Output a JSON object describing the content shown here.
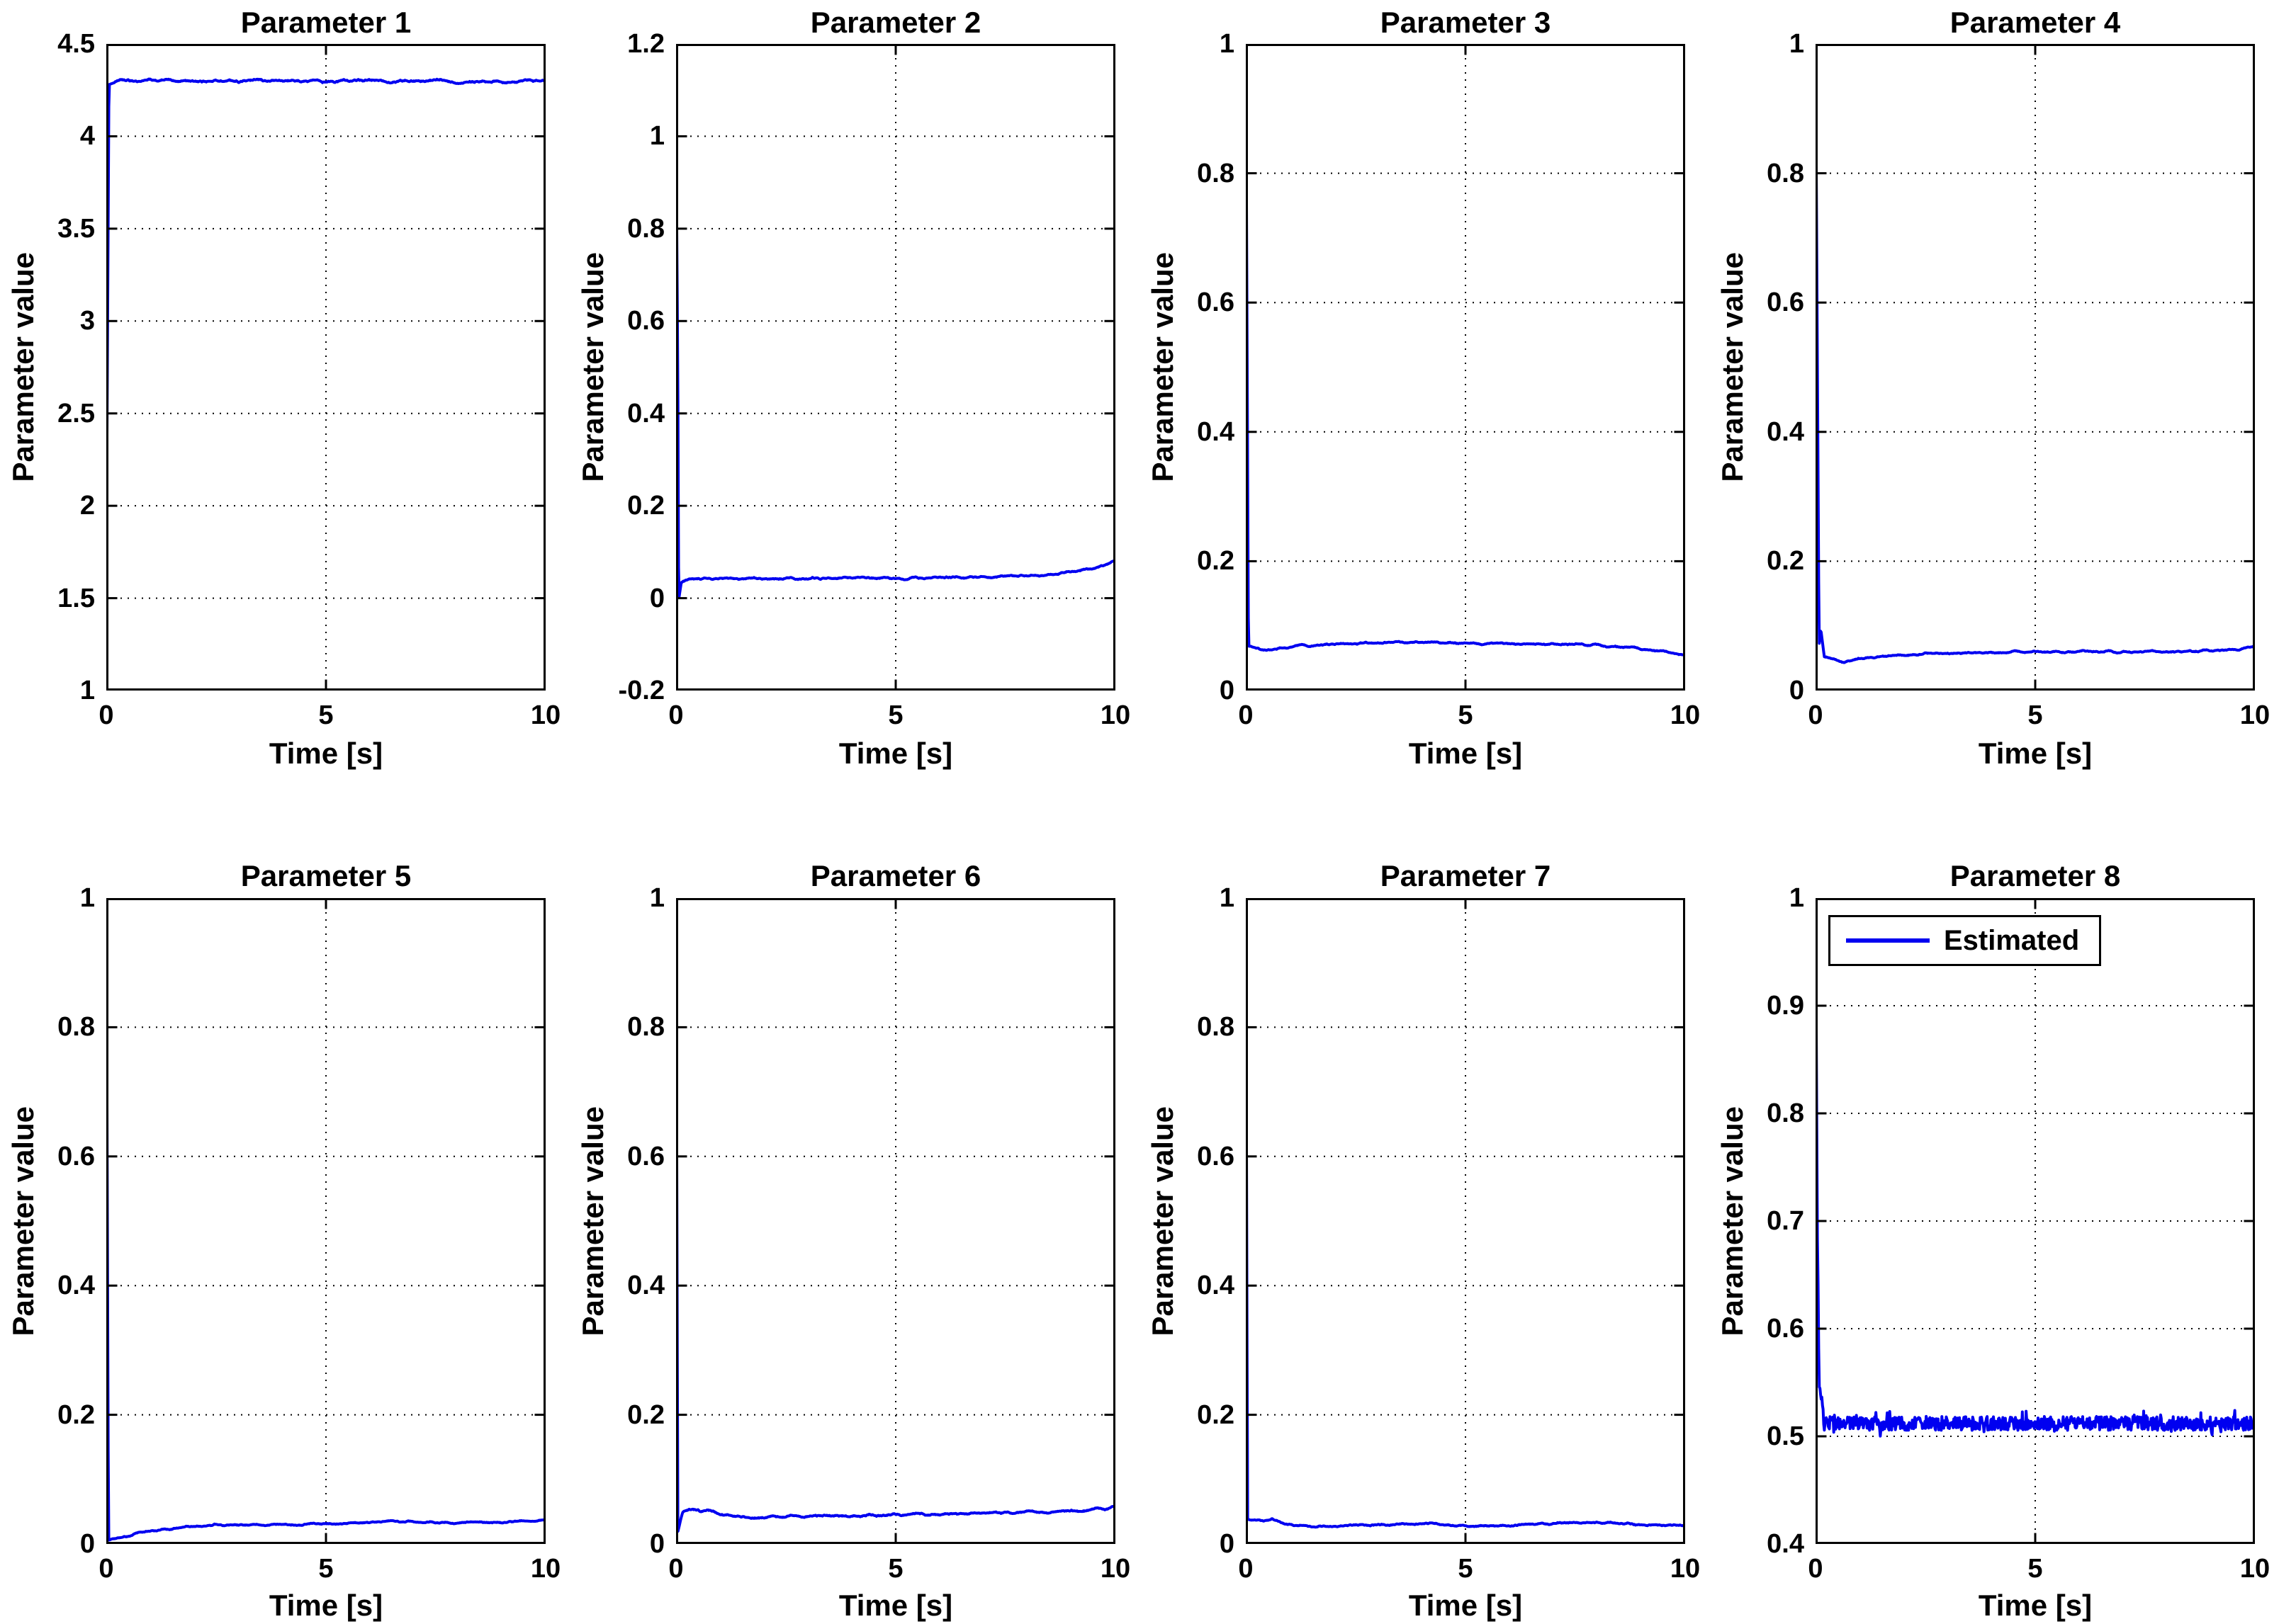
{
  "figure": {
    "background": "#ffffff",
    "frame_color": "#000000",
    "grid_color": "#000000",
    "text_color": "#000000"
  },
  "chart_data": {
    "type": "line",
    "layout": {
      "rows": 2,
      "cols": 4,
      "grid": true
    },
    "series_name": "Estimated",
    "line_color": "#0000F0",
    "legend": {
      "label": "Estimated",
      "position": "top-left-inside",
      "shown_on_plot": "Parameter 8"
    },
    "plots": [
      {
        "title": "Parameter 1",
        "xlabel": "Time [s]",
        "ylabel": "Parameter value",
        "xlim": [
          0,
          10
        ],
        "xticks": [
          "0",
          "5",
          "10"
        ],
        "ylim": [
          1,
          4.5
        ],
        "yticks": [
          "1",
          "1.5",
          "2",
          "2.5",
          "3",
          "3.5",
          "4",
          "4.5"
        ],
        "description": "jumps from ~1.7 at t=0 to steady ~4.3",
        "anchors": [
          [
            0,
            1.7
          ],
          [
            0.06,
            4.28
          ],
          [
            0.3,
            4.3
          ],
          [
            10,
            4.3
          ]
        ],
        "noise": 0.015,
        "smooth": 15,
        "spiky": false,
        "legend": false
      },
      {
        "title": "Parameter 2",
        "xlabel": "Time [s]",
        "ylabel": "Parameter value",
        "xlim": [
          0,
          10
        ],
        "xticks": [
          "0",
          "5",
          "10"
        ],
        "ylim": [
          -0.2,
          1.2
        ],
        "yticks": [
          "-0.2",
          "0",
          "0.2",
          "0.4",
          "0.6",
          "0.8",
          "1",
          "1.2"
        ],
        "description": "starts at 1, drops to ~0, settles ~0.04, rises to ~0.08 by t=10",
        "anchors": [
          [
            0,
            1.0
          ],
          [
            0.04,
            0.5
          ],
          [
            0.06,
            -0.005
          ],
          [
            0.12,
            0.035
          ],
          [
            0.3,
            0.042
          ],
          [
            5,
            0.043
          ],
          [
            7,
            0.046
          ],
          [
            8.5,
            0.05
          ],
          [
            9.4,
            0.062
          ],
          [
            10,
            0.08
          ]
        ],
        "noise": 0.0035,
        "smooth": 13,
        "spiky": false,
        "legend": false
      },
      {
        "title": "Parameter 3",
        "xlabel": "Time [s]",
        "ylabel": "Parameter value",
        "xlim": [
          0,
          10
        ],
        "xticks": [
          "0",
          "5",
          "10"
        ],
        "ylim": [
          0,
          1
        ],
        "yticks": [
          "0",
          "0.2",
          "0.4",
          "0.6",
          "0.8",
          "1"
        ],
        "description": "starts at 1, drops to ~0.065, gentle hump to ~0.075 near t=4, declines to ~0.055",
        "anchors": [
          [
            0,
            1.0
          ],
          [
            0.06,
            0.068
          ],
          [
            0.4,
            0.062
          ],
          [
            1,
            0.068
          ],
          [
            2.5,
            0.073
          ],
          [
            4,
            0.075
          ],
          [
            5.5,
            0.073
          ],
          [
            7,
            0.072
          ],
          [
            8,
            0.07
          ],
          [
            9,
            0.065
          ],
          [
            10,
            0.055
          ]
        ],
        "noise": 0.0025,
        "smooth": 13,
        "spiky": false,
        "legend": false
      },
      {
        "title": "Parameter 4",
        "xlabel": "Time [s]",
        "ylabel": "Parameter value",
        "xlim": [
          0,
          10
        ],
        "xticks": [
          "0",
          "5",
          "10"
        ],
        "ylim": [
          0,
          1
        ],
        "yticks": [
          "0",
          "0.2",
          "0.4",
          "0.6",
          "0.8",
          "1"
        ],
        "description": "starts at 1, brief bump ~0.09, dip ~0.045, settles ~0.06, rises to ~0.07",
        "anchors": [
          [
            0,
            1.0
          ],
          [
            0.08,
            0.07
          ],
          [
            0.12,
            0.095
          ],
          [
            0.2,
            0.05
          ],
          [
            0.45,
            0.048
          ],
          [
            0.65,
            0.043
          ],
          [
            1,
            0.05
          ],
          [
            2,
            0.055
          ],
          [
            3,
            0.058
          ],
          [
            5,
            0.06
          ],
          [
            8,
            0.06
          ],
          [
            9.3,
            0.062
          ],
          [
            9.8,
            0.066
          ],
          [
            10,
            0.07
          ]
        ],
        "noise": 0.0025,
        "smooth": 13,
        "spiky": false,
        "legend": false
      },
      {
        "title": "Parameter 5",
        "xlabel": "Time [s]",
        "ylabel": "Parameter value",
        "xlim": [
          0,
          10
        ],
        "xticks": [
          "0",
          "5",
          "10"
        ],
        "ylim": [
          0,
          1
        ],
        "yticks": [
          "0",
          "0.2",
          "0.4",
          "0.6",
          "0.8",
          "1"
        ],
        "description": "starts at 1, drops to ~0.01, slow rise to ~0.037",
        "anchors": [
          [
            0,
            1.0
          ],
          [
            0.05,
            0.008
          ],
          [
            0.5,
            0.012
          ],
          [
            0.9,
            0.02
          ],
          [
            1.5,
            0.024
          ],
          [
            2.5,
            0.03
          ],
          [
            4,
            0.03
          ],
          [
            5.5,
            0.032
          ],
          [
            6.5,
            0.035
          ],
          [
            8,
            0.033
          ],
          [
            9,
            0.033
          ],
          [
            10,
            0.037
          ]
        ],
        "noise": 0.002,
        "smooth": 13,
        "spiky": false,
        "legend": false
      },
      {
        "title": "Parameter 6",
        "xlabel": "Time [s]",
        "ylabel": "Parameter value",
        "xlim": [
          0,
          10
        ],
        "xticks": [
          "0",
          "5",
          "10"
        ],
        "ylim": [
          0,
          1
        ],
        "yticks": [
          "0",
          "0.2",
          "0.4",
          "0.6",
          "0.8",
          "1"
        ],
        "description": "starts at 1, drops to ~0.02, bump ~0.055, dip ~0.04, slow rise to ~0.057",
        "anchors": [
          [
            0,
            1.0
          ],
          [
            0.04,
            0.02
          ],
          [
            0.15,
            0.05
          ],
          [
            0.35,
            0.055
          ],
          [
            0.55,
            0.05
          ],
          [
            0.7,
            0.053
          ],
          [
            1,
            0.046
          ],
          [
            1.6,
            0.04
          ],
          [
            2.5,
            0.042
          ],
          [
            4,
            0.044
          ],
          [
            5,
            0.045
          ],
          [
            7,
            0.048
          ],
          [
            8.5,
            0.05
          ],
          [
            9.5,
            0.053
          ],
          [
            10,
            0.057
          ]
        ],
        "noise": 0.0025,
        "smooth": 11,
        "spiky": false,
        "legend": false
      },
      {
        "title": "Parameter 7",
        "xlabel": "Time [s]",
        "ylabel": "Parameter value",
        "xlim": [
          0,
          10
        ],
        "xticks": [
          "0",
          "5",
          "10"
        ],
        "ylim": [
          0,
          1
        ],
        "yticks": [
          "0",
          "0.2",
          "0.4",
          "0.6",
          "0.8",
          "1"
        ],
        "description": "starts at 1, drops to ~0.035, settles ~0.028-0.032",
        "anchors": [
          [
            0,
            1.0
          ],
          [
            0.04,
            0.038
          ],
          [
            0.4,
            0.035
          ],
          [
            0.6,
            0.038
          ],
          [
            0.9,
            0.03
          ],
          [
            1.5,
            0.027
          ],
          [
            3,
            0.03
          ],
          [
            4,
            0.032
          ],
          [
            5,
            0.028
          ],
          [
            6,
            0.029
          ],
          [
            7,
            0.032
          ],
          [
            8,
            0.033
          ],
          [
            9,
            0.03
          ],
          [
            10,
            0.028
          ]
        ],
        "noise": 0.002,
        "smooth": 13,
        "spiky": false,
        "legend": false
      },
      {
        "title": "Parameter 8",
        "xlabel": "Time [s]",
        "ylabel": "Parameter value",
        "xlim": [
          0,
          10
        ],
        "xticks": [
          "0",
          "5",
          "10"
        ],
        "ylim": [
          0.4,
          1
        ],
        "yticks": [
          "0.4",
          "0.5",
          "0.6",
          "0.7",
          "0.8",
          "0.9",
          "1"
        ],
        "description": "starts at 1, drops fast to noisy band around 0.51",
        "anchors": [
          [
            0,
            1.0
          ],
          [
            0.04,
            0.7
          ],
          [
            0.08,
            0.55
          ],
          [
            0.2,
            0.512
          ],
          [
            10,
            0.512
          ]
        ],
        "noise": 0.012,
        "smooth": 0,
        "spiky": true,
        "legend": true
      }
    ]
  }
}
